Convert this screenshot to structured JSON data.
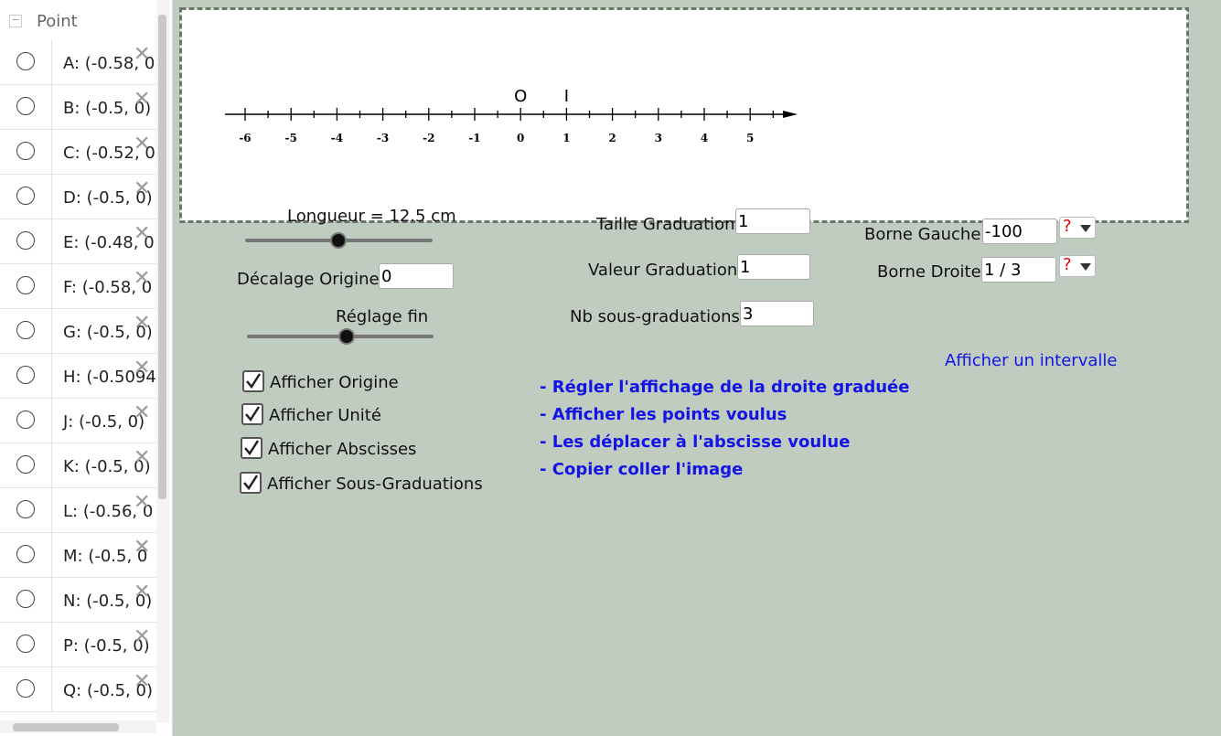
{
  "sidebar": {
    "title": "Point",
    "items": [
      "A: (-0.58, 0",
      "B: (-0.5, 0)",
      "C: (-0.52, 0",
      "D: (-0.5, 0)",
      "E: (-0.48, 0",
      "F: (-0.58, 0",
      "G: (-0.5, 0)",
      "H: (-0.5094",
      "J: (-0.5, 0)",
      "K: (-0.5, 0)",
      "L: (-0.56, 0",
      "M: (-0.5, 0",
      "N: (-0.5, 0)",
      "P: (-0.5, 0)",
      "Q: (-0.5, 0)"
    ]
  },
  "graphics": {
    "origin_label": "O",
    "unit_label": "I",
    "tick_labels": [
      "-6",
      "-5",
      "-4",
      "-3",
      "-2",
      "-1",
      "0",
      "1",
      "2",
      "3",
      "4",
      "5"
    ]
  },
  "controls": {
    "longueur": "Longueur = 12.5 cm",
    "decalage": {
      "label": "Décalage Origine",
      "value": "0"
    },
    "reglage": "Réglage fin",
    "taille": {
      "label": "Taille Graduation",
      "value": "1"
    },
    "valeur": {
      "label": "Valeur Graduation",
      "value": "1"
    },
    "sous": {
      "label": "Nb sous-graduations",
      "value": "3"
    },
    "borne_gauche": {
      "label": "Borne Gauche",
      "value": "-100",
      "button": "?"
    },
    "borne_droite": {
      "label": "Borne Droite",
      "value": "1 / 3",
      "button": "?"
    },
    "intervalle": "Afficher un intervalle",
    "checkboxes": [
      "Afficher Origine",
      "Afficher Unité",
      "Afficher Abscisses",
      "Afficher Sous-Graduations"
    ],
    "instructions": [
      "- Régler l'affichage de la droite graduée",
      "- Afficher les points voulus",
      "- Les déplacer à l'abscisse voulue",
      "- Copier coller l'image"
    ]
  }
}
